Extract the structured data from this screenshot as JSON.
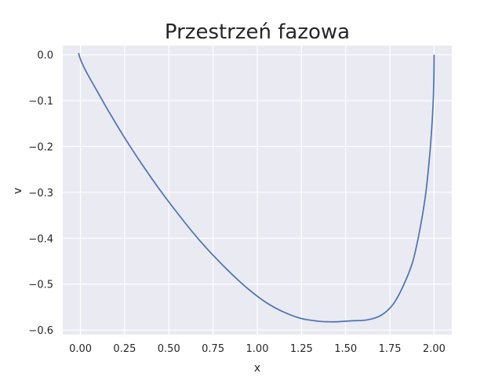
{
  "chart_data": {
    "type": "line",
    "title": "Przestrzeń fazowa",
    "xlabel": "x",
    "ylabel": "v",
    "xlim": [
      -0.1,
      2.1
    ],
    "ylim": [
      -0.61,
      0.02
    ],
    "xticks": [
      "0.00",
      "0.25",
      "0.50",
      "0.75",
      "1.00",
      "1.25",
      "1.50",
      "1.75",
      "2.00"
    ],
    "yticks": [
      "0.0",
      "−0.1",
      "−0.2",
      "−0.3",
      "−0.4",
      "−0.5",
      "−0.6"
    ],
    "grid": true,
    "series": [
      {
        "color": "#4c72b0",
        "x": [
          2.0,
          1.999,
          1.995,
          1.985,
          1.97,
          1.95,
          1.92,
          1.88,
          1.83,
          1.77,
          1.7,
          1.62,
          1.53,
          1.45,
          1.4,
          1.35,
          1.25,
          1.15,
          1.05,
          0.95,
          0.85,
          0.75,
          0.65,
          0.55,
          0.45,
          0.35,
          0.25,
          0.15,
          0.1,
          0.06,
          0.03,
          0.01,
          0.0,
          -0.005,
          -0.01,
          -0.005
        ],
        "y": [
          0.0,
          -0.04,
          -0.1,
          -0.17,
          -0.24,
          -0.31,
          -0.38,
          -0.45,
          -0.5,
          -0.543,
          -0.568,
          -0.578,
          -0.58,
          -0.582,
          -0.582,
          -0.581,
          -0.575,
          -0.561,
          -0.54,
          -0.511,
          -0.476,
          -0.437,
          -0.394,
          -0.346,
          -0.295,
          -0.24,
          -0.181,
          -0.117,
          -0.083,
          -0.056,
          -0.035,
          -0.019,
          -0.01,
          -0.004,
          0.002,
          0.002
        ]
      }
    ]
  }
}
